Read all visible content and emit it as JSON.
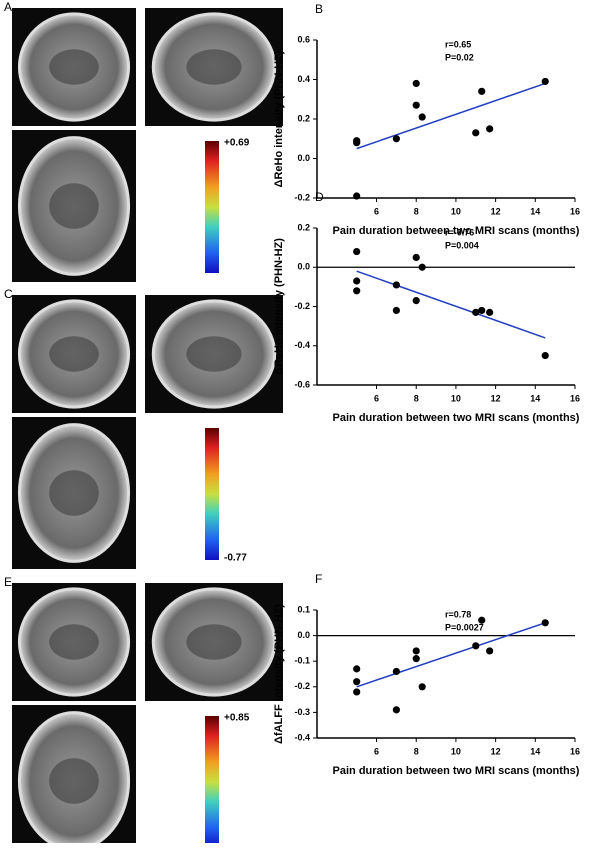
{
  "figures": [
    {
      "label": "A",
      "colorbar_label": "+0.69"
    },
    {
      "label": "C",
      "colorbar_label": "-0.77"
    },
    {
      "label": "E",
      "colorbar_label": "+0.85"
    }
  ],
  "chart_data": [
    {
      "type": "scatter",
      "panel_label": "B",
      "x_label": "Pain duration between two MRI scans (months)",
      "y_label": "ΔReHo intensity (PHN-HZ)",
      "annotations": [
        "r=0.65",
        "P=0.02"
      ],
      "x": [
        5,
        5,
        5,
        7,
        8,
        8,
        8.3,
        11,
        11.3,
        11.7,
        14.5
      ],
      "values": [
        0.09,
        0.08,
        -0.19,
        0.1,
        0.38,
        0.27,
        0.21,
        0.13,
        0.34,
        0.15,
        0.39
      ],
      "color": "#000000",
      "trendline": {
        "x": [
          5,
          14.5
        ],
        "y": [
          0.05,
          0.38
        ],
        "color": "#1f3fbf"
      },
      "xlim": [
        3,
        16
      ],
      "xticks": [
        6,
        8,
        10,
        12,
        14,
        16
      ],
      "ylim": [
        -0.2,
        0.6
      ],
      "yticks": [
        -0.2,
        {
          "value": 0,
          "label": "0.0"
        },
        0.2,
        0.4,
        0.6
      ],
      "zero_line": false
    },
    {
      "type": "scatter",
      "panel_label": "D",
      "x_label": "Pain duration between two MRI scans (months)",
      "y_label": "ΔReHo intensity (PHN-HZ)",
      "annotations": [
        "r=-0.76",
        "P=0.004"
      ],
      "x": [
        5,
        5,
        5,
        7,
        7,
        8,
        8,
        8.3,
        11,
        11.3,
        11.7,
        14.5
      ],
      "values": [
        0.08,
        -0.07,
        -0.12,
        -0.09,
        -0.22,
        0.05,
        -0.17,
        0,
        -0.23,
        -0.22,
        -0.23,
        -0.45
      ],
      "color": "#000000",
      "trendline": {
        "x": [
          5,
          14.5
        ],
        "y": [
          -0.02,
          -0.36
        ],
        "color": "#1f3fbf"
      },
      "xlim": [
        3,
        16
      ],
      "xticks": [
        6,
        8,
        10,
        12,
        14,
        16
      ],
      "ylim": [
        -0.6,
        0.2
      ],
      "yticks": [
        -0.6,
        -0.4,
        -0.2,
        {
          "value": 0,
          "label": "0.0"
        },
        0.2
      ],
      "zero_line": true
    },
    {
      "type": "scatter",
      "panel_label": "F",
      "x_label": "Pain duration between two MRI scans (months)",
      "y_label": "ΔfALFF intensity (PHN-HZ)",
      "annotations": [
        "r=0.78",
        "P=0.0027"
      ],
      "x": [
        5,
        5,
        5,
        7,
        7,
        8,
        8,
        8.3,
        11,
        11.3,
        11.7,
        14.5
      ],
      "values": [
        -0.13,
        -0.18,
        -0.22,
        -0.14,
        -0.29,
        -0.06,
        -0.09,
        -0.2,
        -0.04,
        0.06,
        -0.06,
        0.05
      ],
      "color": "#000000",
      "trendline": {
        "x": [
          5,
          14.5
        ],
        "y": [
          -0.2,
          0.05
        ],
        "color": "#1f3fbf"
      },
      "xlim": [
        3,
        16
      ],
      "xticks": [
        6,
        8,
        10,
        12,
        14,
        16
      ],
      "ylim": [
        -0.4,
        0.1
      ],
      "yticks": [
        -0.4,
        -0.3,
        -0.2,
        -0.1,
        {
          "value": 0,
          "label": "0.0"
        },
        0.1
      ],
      "zero_line": true
    }
  ]
}
